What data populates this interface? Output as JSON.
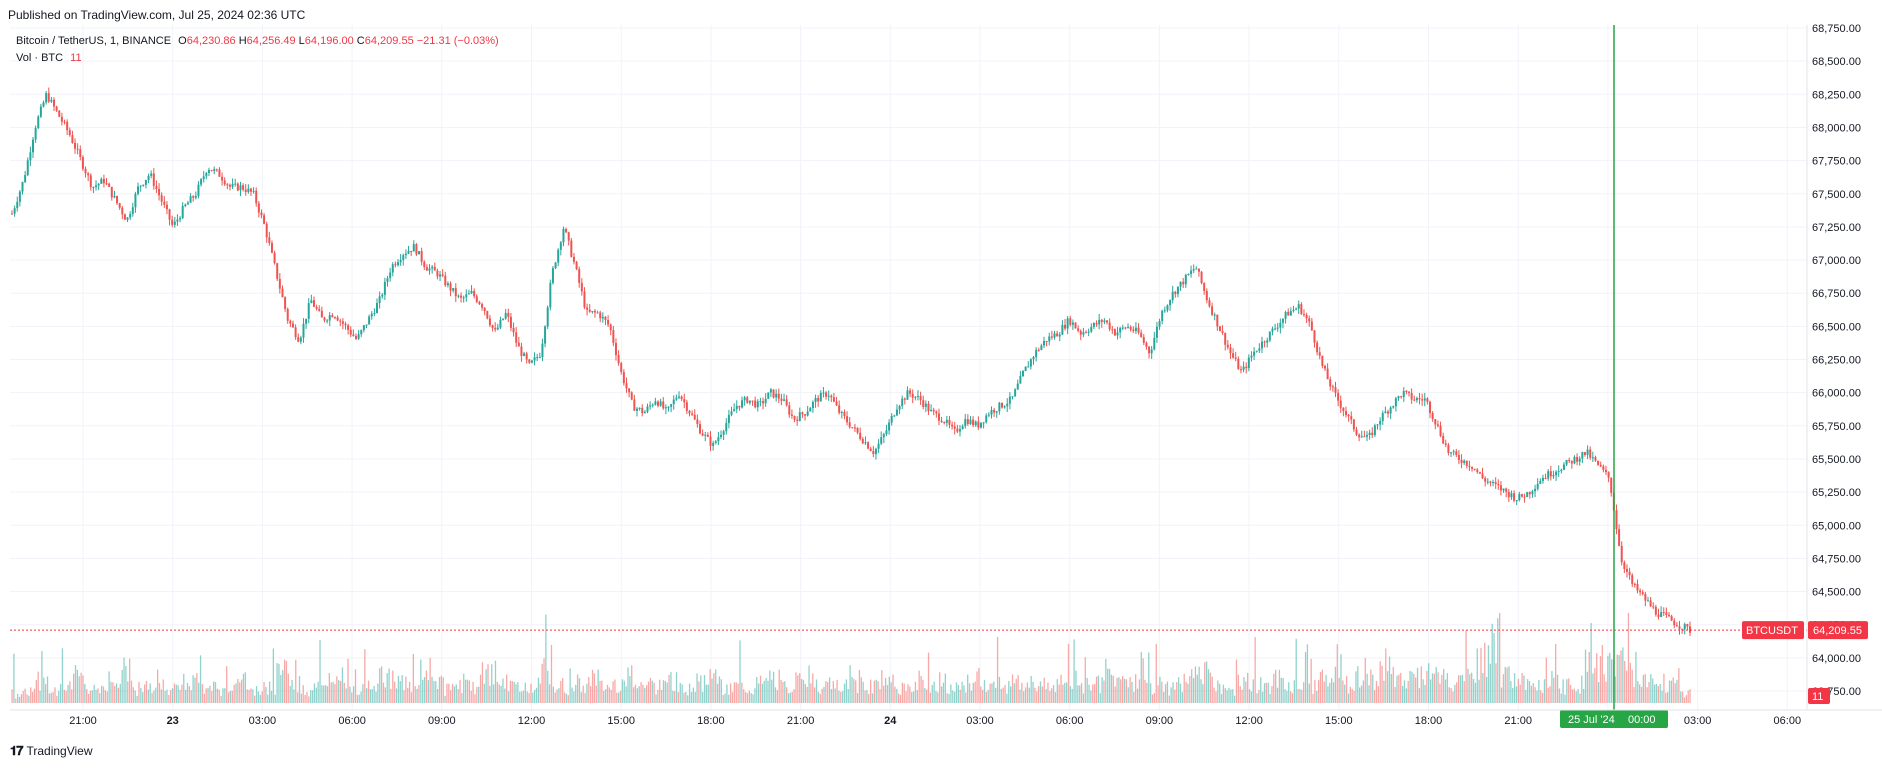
{
  "header": {
    "published": "Published on TradingView.com, Jul 25, 2024 02:36 UTC"
  },
  "legend": {
    "symbol": "Bitcoin / TetherUS, 1, BINANCE",
    "o_label": "O",
    "o_value": "64,230.86",
    "h_label": "H",
    "h_value": "64,256.49",
    "l_label": "L",
    "l_value": "64,196.00",
    "c_label": "C",
    "c_value": "64,209.55",
    "change": "−21.31 (−0.03%)",
    "vol_label": "Vol · BTC",
    "vol_value": "11"
  },
  "footer": {
    "brand": "TradingView"
  },
  "colors": {
    "up": "#26a69a",
    "down": "#ef5350",
    "last_price": "#f23645",
    "crosshair": "#26a645",
    "grid": "#f0f3fa"
  },
  "chart_data": {
    "type": "candlestick",
    "symbol": "BTCUSDT",
    "timeframe": "1 minute",
    "ylim": [
      63750,
      68750
    ],
    "y_ticks": [
      "63,750.00",
      "64,000.00",
      "64,250.00",
      "64,500.00",
      "64,750.00",
      "65,000.00",
      "65,250.00",
      "65,500.00",
      "65,750.00",
      "66,000.00",
      "66,250.00",
      "66,500.00",
      "66,750.00",
      "67,000.00",
      "67,250.00",
      "67,500.00",
      "67,750.00",
      "68,000.00",
      "68,250.00",
      "68,500.00",
      "68,750.00"
    ],
    "x_ticks": [
      "21:00",
      "23",
      "03:00",
      "06:00",
      "09:00",
      "12:00",
      "15:00",
      "18:00",
      "21:00",
      "24",
      "03:00",
      "06:00",
      "09:00",
      "12:00",
      "15:00",
      "18:00",
      "21:00",
      "00:00",
      "03:00",
      "06:00"
    ],
    "x_ticks_bold": [
      "23",
      "24"
    ],
    "crosshair_time": "25 Jul '24",
    "crosshair_clock": "00:00",
    "last_price": 64209.55,
    "last_price_label": "64,209.55",
    "last_price_tag": "BTCUSDT",
    "volume_last": "11",
    "price_path": [
      [
        0,
        67350
      ],
      [
        1,
        67600
      ],
      [
        2,
        68000
      ],
      [
        3,
        68250
      ],
      [
        4,
        68100
      ],
      [
        5,
        67950
      ],
      [
        6,
        67750
      ],
      [
        7,
        67550
      ],
      [
        8,
        67600
      ],
      [
        9,
        67450
      ],
      [
        10,
        67300
      ],
      [
        11,
        67550
      ],
      [
        12,
        67650
      ],
      [
        13,
        67450
      ],
      [
        14,
        67250
      ],
      [
        15,
        67400
      ],
      [
        16,
        67500
      ],
      [
        17,
        67700
      ],
      [
        18,
        67650
      ],
      [
        19,
        67550
      ],
      [
        20,
        67550
      ],
      [
        21,
        67500
      ],
      [
        22,
        67250
      ],
      [
        23,
        66900
      ],
      [
        24,
        66550
      ],
      [
        25,
        66400
      ],
      [
        26,
        66700
      ],
      [
        27,
        66550
      ],
      [
        28,
        66600
      ],
      [
        29,
        66500
      ],
      [
        30,
        66400
      ],
      [
        31,
        66550
      ],
      [
        32,
        66700
      ],
      [
        33,
        66950
      ],
      [
        34,
        67050
      ],
      [
        35,
        67100
      ],
      [
        36,
        66950
      ],
      [
        37,
        66900
      ],
      [
        38,
        66800
      ],
      [
        39,
        66700
      ],
      [
        40,
        66750
      ],
      [
        41,
        66650
      ],
      [
        42,
        66450
      ],
      [
        43,
        66600
      ],
      [
        44,
        66350
      ],
      [
        45,
        66200
      ],
      [
        46,
        66300
      ],
      [
        47,
        66900
      ],
      [
        48,
        67250
      ],
      [
        49,
        66950
      ],
      [
        50,
        66600
      ],
      [
        51,
        66600
      ],
      [
        52,
        66500
      ],
      [
        53,
        66150
      ],
      [
        54,
        65900
      ],
      [
        55,
        65850
      ],
      [
        56,
        65950
      ],
      [
        57,
        65850
      ],
      [
        58,
        66000
      ],
      [
        59,
        65850
      ],
      [
        60,
        65700
      ],
      [
        61,
        65600
      ],
      [
        62,
        65750
      ],
      [
        63,
        65900
      ],
      [
        64,
        65950
      ],
      [
        65,
        65900
      ],
      [
        66,
        66000
      ],
      [
        67,
        65950
      ],
      [
        68,
        65800
      ],
      [
        69,
        65850
      ],
      [
        70,
        65950
      ],
      [
        71,
        66000
      ],
      [
        72,
        65850
      ],
      [
        73,
        65750
      ],
      [
        74,
        65650
      ],
      [
        75,
        65550
      ],
      [
        76,
        65700
      ],
      [
        77,
        65900
      ],
      [
        78,
        66000
      ],
      [
        79,
        65950
      ],
      [
        80,
        65850
      ],
      [
        81,
        65800
      ],
      [
        82,
        65700
      ],
      [
        83,
        65800
      ],
      [
        84,
        65750
      ],
      [
        85,
        65850
      ],
      [
        86,
        65900
      ],
      [
        87,
        65950
      ],
      [
        88,
        66150
      ],
      [
        89,
        66300
      ],
      [
        90,
        66400
      ],
      [
        91,
        66450
      ],
      [
        92,
        66550
      ],
      [
        93,
        66450
      ],
      [
        94,
        66500
      ],
      [
        95,
        66550
      ],
      [
        96,
        66450
      ],
      [
        97,
        66500
      ],
      [
        98,
        66450
      ],
      [
        99,
        66300
      ],
      [
        100,
        66600
      ],
      [
        101,
        66750
      ],
      [
        102,
        66850
      ],
      [
        103,
        66950
      ],
      [
        104,
        66700
      ],
      [
        105,
        66500
      ],
      [
        106,
        66300
      ],
      [
        107,
        66150
      ],
      [
        108,
        66300
      ],
      [
        109,
        66400
      ],
      [
        110,
        66500
      ],
      [
        111,
        66600
      ],
      [
        112,
        66650
      ],
      [
        113,
        66500
      ],
      [
        114,
        66200
      ],
      [
        115,
        66000
      ],
      [
        116,
        65850
      ],
      [
        117,
        65700
      ],
      [
        118,
        65650
      ],
      [
        119,
        65800
      ],
      [
        120,
        65900
      ],
      [
        121,
        66000
      ],
      [
        122,
        65950
      ],
      [
        123,
        65950
      ],
      [
        124,
        65750
      ],
      [
        125,
        65550
      ],
      [
        126,
        65500
      ],
      [
        127,
        65450
      ],
      [
        128,
        65350
      ],
      [
        129,
        65300
      ],
      [
        130,
        65250
      ],
      [
        131,
        65200
      ],
      [
        132,
        65250
      ],
      [
        133,
        65350
      ],
      [
        134,
        65400
      ],
      [
        135,
        65450
      ],
      [
        136,
        65500
      ],
      [
        137,
        65550
      ],
      [
        138,
        65450
      ],
      [
        139,
        65350
      ],
      [
        140,
        64750
      ],
      [
        141,
        64550
      ],
      [
        142,
        64450
      ],
      [
        143,
        64350
      ],
      [
        144,
        64300
      ],
      [
        145,
        64250
      ],
      [
        146,
        64209.55
      ]
    ],
    "volume_profile": [
      12,
      18,
      25,
      14,
      20,
      35,
      22,
      16,
      28,
      40,
      19,
      24,
      30,
      18,
      26,
      45,
      20,
      17,
      23,
      31,
      15,
      21,
      38,
      27,
      16,
      22,
      29,
      34,
      18,
      25,
      20,
      33,
      26,
      19,
      42,
      24,
      17,
      28,
      21,
      36,
      23,
      30,
      19,
      26,
      48,
      22,
      18,
      27,
      33,
      20,
      25,
      41,
      19,
      23,
      30,
      24,
      17,
      29,
      35,
      21,
      26,
      18,
      24,
      32,
      20,
      27,
      19,
      23,
      28,
      22,
      25,
      21,
      30,
      26,
      19,
      24,
      22,
      27,
      18,
      25,
      33,
      21,
      26,
      30,
      24,
      20,
      23,
      28,
      35,
      22,
      27,
      31,
      25,
      29,
      46,
      24,
      20,
      26,
      32,
      38,
      23,
      19,
      27,
      21,
      25,
      30,
      22,
      28,
      24,
      29,
      35,
      26,
      44,
      31,
      40,
      33,
      28,
      37,
      42,
      30,
      26,
      32,
      58,
      85,
      34,
      27,
      30,
      25,
      28,
      22,
      26,
      70,
      55,
      48,
      62,
      40,
      33,
      29,
      36,
      12
    ]
  }
}
